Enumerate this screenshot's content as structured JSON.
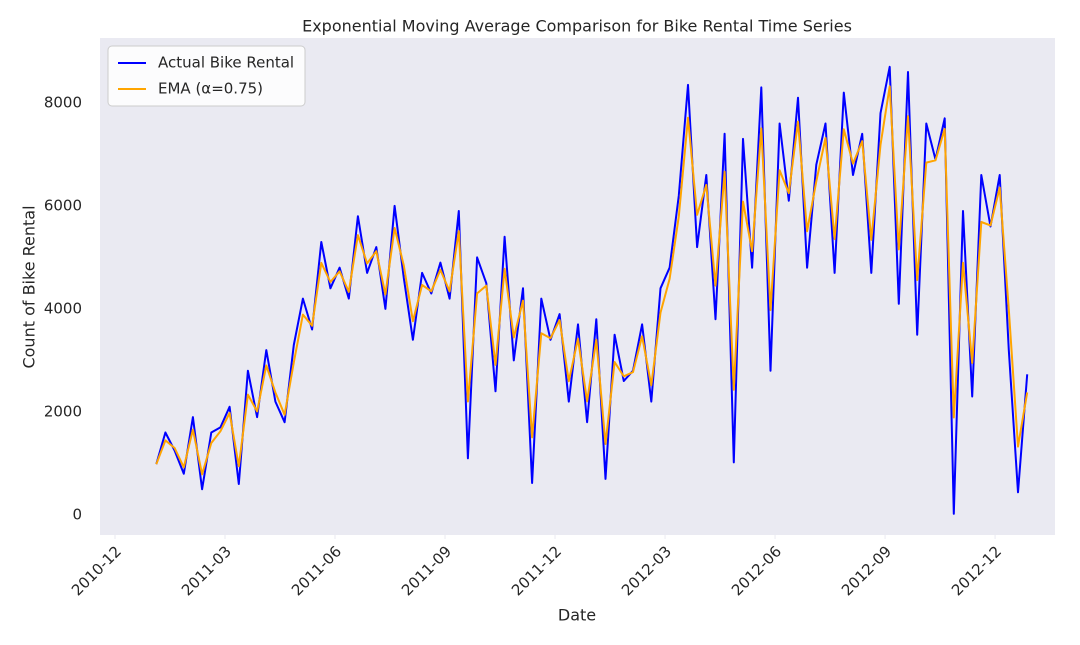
{
  "chart_data": {
    "type": "line",
    "title": "Exponential Moving Average Comparison for Bike Rental Time Series",
    "x_label": "Date",
    "y_label": "Count of Bike Rental",
    "x": [
      "2011-01",
      "2011-01",
      "2011-01",
      "2011-01",
      "2011-02",
      "2011-02",
      "2011-02",
      "2011-02",
      "2011-03",
      "2011-03",
      "2011-03",
      "2011-03",
      "2011-04",
      "2011-04",
      "2011-04",
      "2011-04",
      "2011-05",
      "2011-05",
      "2011-05",
      "2011-05",
      "2011-06",
      "2011-06",
      "2011-06",
      "2011-06",
      "2011-07",
      "2011-07",
      "2011-07",
      "2011-07",
      "2011-08",
      "2011-08",
      "2011-08",
      "2011-08",
      "2011-09",
      "2011-09",
      "2011-09",
      "2011-09",
      "2011-10",
      "2011-10",
      "2011-10",
      "2011-10",
      "2011-11",
      "2011-11",
      "2011-11",
      "2011-11",
      "2011-12",
      "2011-12",
      "2011-12",
      "2011-12",
      "2012-01",
      "2012-01",
      "2012-01",
      "2012-01",
      "2012-02",
      "2012-02",
      "2012-02",
      "2012-02",
      "2012-03",
      "2012-03",
      "2012-03",
      "2012-03",
      "2012-04",
      "2012-04",
      "2012-04",
      "2012-04",
      "2012-05",
      "2012-05",
      "2012-05",
      "2012-05",
      "2012-06",
      "2012-06",
      "2012-06",
      "2012-06",
      "2012-07",
      "2012-07",
      "2012-07",
      "2012-07",
      "2012-08",
      "2012-08",
      "2012-08",
      "2012-08",
      "2012-09",
      "2012-09",
      "2012-09",
      "2012-09",
      "2012-10",
      "2012-10",
      "2012-10",
      "2012-10",
      "2012-11",
      "2012-11",
      "2012-11",
      "2012-11",
      "2012-12",
      "2012-12",
      "2012-12",
      "2012-12"
    ],
    "series": [
      {
        "name": "Actual Bike Rental",
        "color": "#0000ff",
        "values": [
          985,
          1600,
          1250,
          800,
          1900,
          500,
          1600,
          1700,
          2100,
          600,
          2800,
          1900,
          3200,
          2200,
          1800,
          3300,
          4200,
          3600,
          5300,
          4400,
          4800,
          4200,
          5800,
          4700,
          5200,
          4000,
          6000,
          4600,
          3400,
          4700,
          4300,
          4900,
          4200,
          5900,
          1100,
          5000,
          4500,
          2400,
          5400,
          3000,
          4400,
          620,
          4200,
          3400,
          3900,
          2200,
          3700,
          1800,
          3800,
          700,
          3500,
          2600,
          2800,
          3700,
          2200,
          4400,
          4800,
          6200,
          8350,
          5200,
          6600,
          3800,
          7400,
          1020,
          7300,
          4800,
          8300,
          2800,
          7600,
          6100,
          8100,
          4800,
          6800,
          7600,
          4700,
          8200,
          6600,
          7400,
          4700,
          7800,
          8700,
          4100,
          8600,
          3500,
          7600,
          6900,
          7700,
          22,
          5900,
          2300,
          6600,
          5600,
          6600,
          3200,
          440,
          2730
        ]
      },
      {
        "name": "EMA (α=0.75)",
        "color": "#ffa500",
        "values": [
          985,
          1446,
          1299,
          925,
          1656,
          789,
          1397,
          1624,
          1981,
          945,
          2336,
          2009,
          2902,
          2376,
          1944,
          2961,
          3890,
          3673,
          4893,
          4523,
          4731,
          4333,
          5433,
          4883,
          5121,
          4280,
          5570,
          4843,
          3761,
          4465,
          4341,
          4760,
          4340,
          5510,
          2203,
          4301,
          4450,
          2913,
          4778,
          3445,
          4161,
          1505,
          3526,
          3432,
          3783,
          2596,
          3424,
          2206,
          3402,
          1376,
          2969,
          2692,
          2773,
          3468,
          2517,
          3929,
          4582,
          5796,
          7711,
          5828,
          6407,
          4452,
          6663,
          2431,
          6083,
          5121,
          7505,
          3976,
          6694,
          6249,
          7637,
          5509,
          6477,
          7319,
          5355,
          7489,
          6822,
          7256,
          5339,
          7185,
          8321,
          5155,
          7739,
          4560,
          6840,
          6885,
          7496,
          1891,
          4898,
          2949,
          5687,
          5622,
          6356,
          3989,
          1327,
          2379
        ]
      }
    ],
    "ylim": [
      -390,
      9260
    ],
    "yticks": [
      0,
      2000,
      4000,
      6000,
      8000
    ],
    "xticks": [
      "2010-12",
      "2011-03",
      "2011-06",
      "2011-09",
      "2011-12",
      "2012-03",
      "2012-06",
      "2012-09",
      "2012-12"
    ],
    "grid": false,
    "legend": "upper left"
  }
}
